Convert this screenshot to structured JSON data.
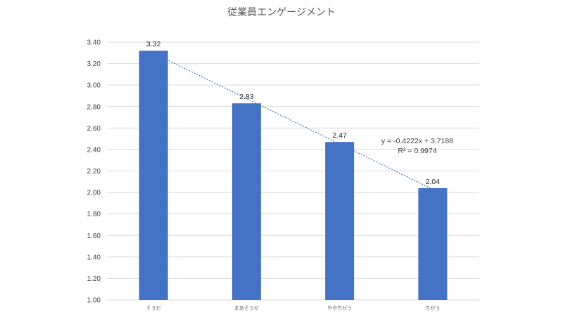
{
  "chart_data": {
    "type": "bar",
    "title": "従業員エンゲージメント",
    "categories": [
      "そうだ",
      "まあそうだ",
      "ややちがう",
      "ちがう"
    ],
    "values": [
      3.32,
      2.83,
      2.47,
      2.04
    ],
    "data_labels": [
      "3.32",
      "2.83",
      "2.47",
      "2.04"
    ],
    "ylim": [
      1.0,
      3.4
    ],
    "y_ticks": [
      "1.00",
      "1.20",
      "1.40",
      "1.60",
      "1.80",
      "2.00",
      "2.20",
      "2.40",
      "2.60",
      "2.80",
      "3.00",
      "3.20",
      "3.40"
    ],
    "grid": true,
    "legend": "none",
    "trendline": {
      "type": "linear",
      "slope": -0.4222,
      "intercept": 3.7188,
      "equation": "y = -0.4222x + 3.7188",
      "r2_label": "R² = 0.9974"
    },
    "colors": {
      "bar": "#4472c4",
      "trendline": "#4472c4",
      "grid": "#d9d9d9"
    }
  }
}
